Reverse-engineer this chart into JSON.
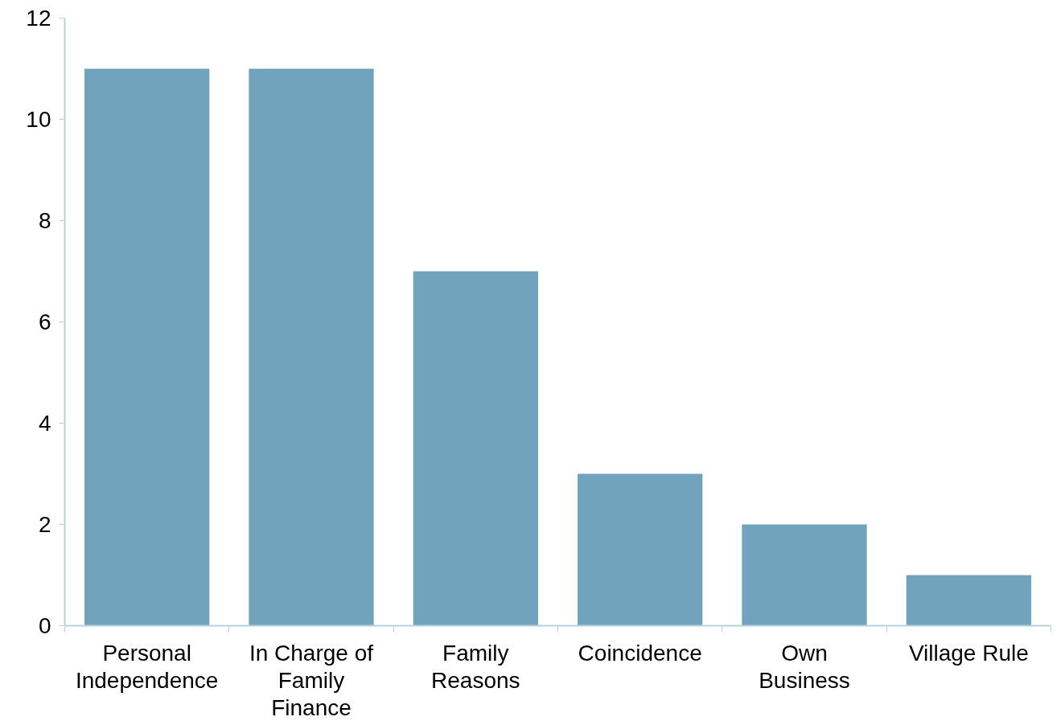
{
  "chart_data": {
    "type": "bar",
    "categories": [
      "Personal Independence",
      "In Charge of Family Finance",
      "Family Reasons",
      "Coincidence",
      "Own Business",
      "Village Rule"
    ],
    "values": [
      11,
      11,
      7,
      3,
      2,
      1
    ],
    "color": "#71a3bd",
    "ylim": [
      0,
      12
    ],
    "yticks": [
      0,
      2,
      4,
      6,
      8,
      10,
      12
    ],
    "grid": false
  }
}
